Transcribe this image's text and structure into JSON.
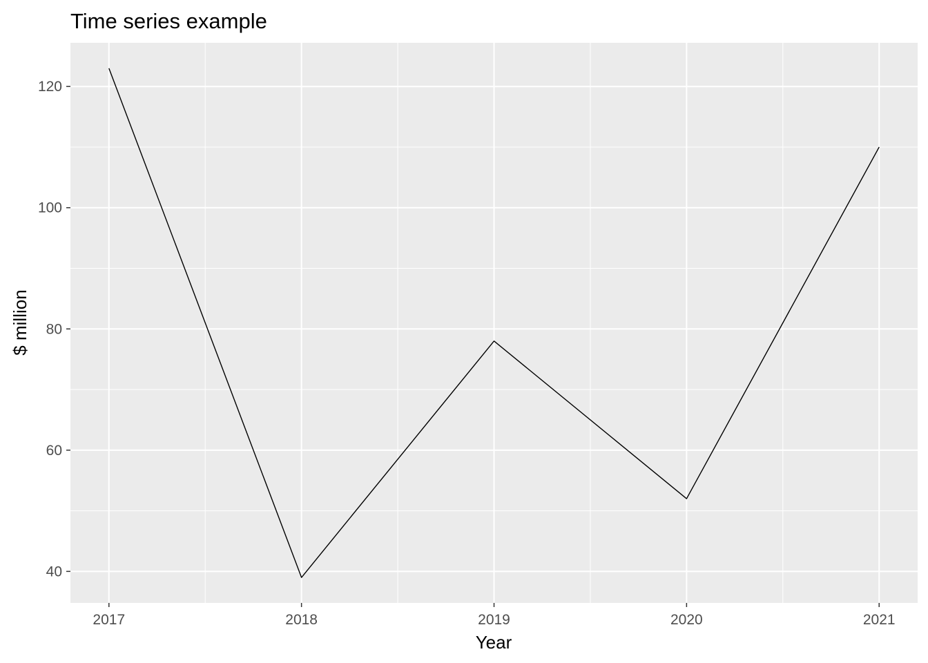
{
  "chart_data": {
    "type": "line",
    "title": "Time series example",
    "xlabel": "Year",
    "ylabel": "$ million",
    "x": [
      2017,
      2018,
      2019,
      2020,
      2021
    ],
    "series": [
      {
        "values": [
          123,
          39,
          78,
          52,
          110
        ]
      }
    ],
    "x_ticks": [
      "2017",
      "2018",
      "2019",
      "2020",
      "2021"
    ],
    "y_ticks": [
      "40",
      "60",
      "80",
      "100",
      "120"
    ],
    "xlim": [
      2016.8,
      2021.2
    ],
    "ylim": [
      34.8,
      127.2
    ],
    "grid": true,
    "legend": "none",
    "colors": {
      "panel_background": "#ebebeb",
      "grid_line": "#ffffff",
      "series_line": "#000000",
      "tick_label": "#4d4d4d",
      "tick_mark": "#333333"
    }
  }
}
